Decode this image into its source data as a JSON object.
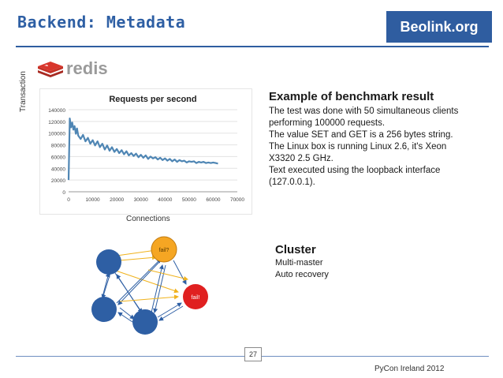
{
  "header": {
    "title": "Backend: Metadata",
    "site": "Beolink.org"
  },
  "logo": {
    "text": "redis"
  },
  "chart": {
    "ylabel_left": "Transaction",
    "xlabel_bottom": "Connections"
  },
  "chart_data": {
    "type": "line",
    "title": "Requests per second",
    "xlabel": "",
    "ylabel": "",
    "xlim": [
      0,
      70000
    ],
    "ylim": [
      0,
      140000
    ],
    "xticks": [
      0,
      10000,
      20000,
      30000,
      40000,
      50000,
      60000,
      70000
    ],
    "yticks": [
      0,
      20000,
      40000,
      60000,
      80000,
      100000,
      120000,
      140000
    ],
    "x": [
      0,
      500,
      1000,
      1500,
      2000,
      2500,
      3000,
      3500,
      4000,
      5000,
      6000,
      7000,
      8000,
      9000,
      10000,
      11000,
      12000,
      13000,
      14000,
      15000,
      16000,
      17000,
      18000,
      19000,
      20000,
      21000,
      22000,
      23000,
      24000,
      25000,
      26000,
      27000,
      28000,
      29000,
      30000,
      31000,
      32000,
      33000,
      34000,
      35000,
      36000,
      37000,
      38000,
      39000,
      40000,
      41000,
      42000,
      43000,
      44000,
      45000,
      46000,
      47000,
      48000,
      49000,
      50000,
      51000,
      52000,
      53000,
      54000,
      55000,
      56000,
      57000,
      58000,
      59000,
      60000,
      61000,
      62000
    ],
    "series": [
      {
        "values": [
          20000,
          125000,
          110000,
          118000,
          106000,
          112000,
          99000,
          108000,
          96000,
          90000,
          97000,
          86000,
          92000,
          82000,
          88000,
          79000,
          86000,
          76000,
          82000,
          72000,
          79000,
          70000,
          76000,
          68000,
          73000,
          66000,
          71000,
          64000,
          69000,
          62000,
          66000,
          61000,
          65000,
          59000,
          63000,
          58000,
          62000,
          56000,
          60000,
          57000,
          59000,
          55000,
          58000,
          54000,
          57000,
          53000,
          56000,
          52000,
          55000,
          51000,
          54000,
          52000,
          53000,
          50000,
          52000,
          51000,
          52000,
          49000,
          51000,
          50000,
          51000,
          49000,
          50000,
          49000,
          50000,
          49000,
          48000
        ]
      }
    ],
    "color": "#4f86b4"
  },
  "benchmark": {
    "title": "Example of benchmark result",
    "lines": [
      "The test was done with 50 simultaneous clients",
      "performing 100000 requests.",
      "The value SET and GET is a 256 bytes string.",
      "The Linux box is running Linux 2.6, it's Xeon",
      "X3320 2.5 GHz.",
      "Text executed using the loopback interface",
      "(127.0.0.1)."
    ]
  },
  "cluster": {
    "title": "Cluster",
    "lines": [
      "Multi-master",
      "Auto recovery"
    ],
    "node_labels": {
      "top": "fail?",
      "right": "fail!"
    },
    "colors": {
      "node": "#2e5fa4",
      "fail_question": "#f5a623",
      "fail_bang": "#e02020",
      "arrow": "#2e5fa4",
      "arrow_warn": "#f0b21c"
    }
  },
  "footer": {
    "page": "27",
    "event": "PyCon Ireland 2012"
  }
}
